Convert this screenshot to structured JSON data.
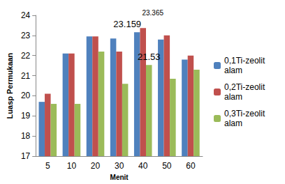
{
  "chart_data": {
    "type": "bar",
    "x_label": "Menit",
    "y_label": "Luasp Permukaan",
    "categories": [
      "5",
      "10",
      "20",
      "30",
      "40",
      "50",
      "60"
    ],
    "series": [
      {
        "name": "0,1Ti-zeolit alam",
        "color": "#4f81bd",
        "values": [
          19.7,
          22.1,
          22.95,
          22.85,
          23.159,
          22.8,
          21.8
        ]
      },
      {
        "name": "0,2Ti-zeolit alam",
        "color": "#c0504d",
        "values": [
          20.1,
          22.1,
          22.95,
          22.2,
          23.365,
          23.0,
          22.0
        ]
      },
      {
        "name": "0,3Ti-zeolit alam",
        "color": "#9bbb59",
        "values": [
          19.6,
          19.6,
          22.2,
          20.6,
          21.53,
          20.85,
          21.3
        ]
      }
    ],
    "annotations": [
      {
        "category": "40",
        "series": "0,1Ti-zeolit alam",
        "text": "23.159"
      },
      {
        "category": "40",
        "series": "0,2Ti-zeolit alam",
        "text": "23.365"
      },
      {
        "category": "40",
        "series": "0,3Ti-zeolit alam",
        "text": "21.53"
      }
    ],
    "ylim": [
      17,
      24
    ],
    "yticks": [
      17,
      18,
      19,
      20,
      21,
      22,
      23,
      24
    ],
    "grid": false,
    "legend": "right"
  }
}
